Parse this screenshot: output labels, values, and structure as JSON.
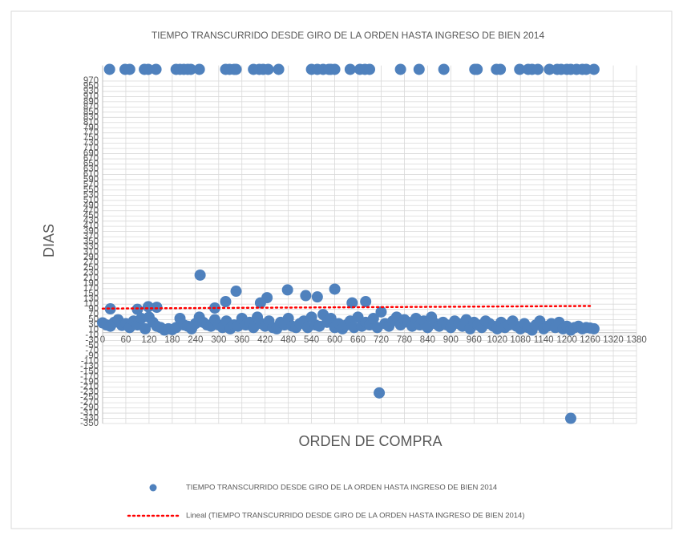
{
  "chart_data": {
    "type": "scatter",
    "title": "TIEMPO TRANSCURRIDO DESDE GIRO DE LA ORDEN HASTA INGRESO DE BIEN 2014",
    "x_label": "ORDEN DE COMPRA",
    "y_label": "DIAS",
    "xlim": [
      0,
      1380
    ],
    "ylim": [
      -350,
      1030
    ],
    "xticks": [
      0,
      60,
      120,
      180,
      240,
      300,
      360,
      420,
      480,
      540,
      600,
      660,
      720,
      780,
      840,
      900,
      960,
      1020,
      1080,
      1140,
      1200,
      1260,
      1320,
      1380
    ],
    "yticks": [
      -350,
      -330,
      -310,
      -290,
      -270,
      -250,
      -230,
      -210,
      -190,
      -170,
      -150,
      -130,
      -110,
      -90,
      -70,
      -50,
      -30,
      -10,
      10,
      30,
      50,
      70,
      90,
      110,
      130,
      150,
      170,
      190,
      210,
      230,
      250,
      270,
      290,
      310,
      330,
      350,
      370,
      390,
      410,
      430,
      450,
      470,
      490,
      510,
      530,
      550,
      570,
      590,
      610,
      630,
      650,
      670,
      690,
      710,
      730,
      750,
      770,
      790,
      810,
      830,
      850,
      870,
      890,
      910,
      930,
      950,
      970
    ],
    "grid": true,
    "legend": "bottom",
    "series": [
      {
        "name": "TIEMPO TRANSCURRIDO DESDE GIRO DE LA ORDEN HASTA INGRESO DE BIEN 2014",
        "color": "#4f81bd",
        "x": [
          0,
          10,
          20,
          30,
          40,
          50,
          60,
          70,
          80,
          90,
          100,
          110,
          120,
          130,
          140,
          150,
          160,
          170,
          180,
          190,
          200,
          210,
          220,
          230,
          240,
          250,
          260,
          270,
          280,
          290,
          300,
          310,
          320,
          330,
          340,
          350,
          360,
          370,
          380,
          390,
          400,
          410,
          420,
          430,
          440,
          450,
          460,
          470,
          480,
          490,
          500,
          510,
          520,
          530,
          540,
          550,
          560,
          570,
          580,
          590,
          600,
          610,
          620,
          630,
          640,
          650,
          660,
          670,
          680,
          690,
          700,
          710,
          720,
          730,
          740,
          750,
          760,
          770,
          780,
          790,
          800,
          810,
          820,
          830,
          840,
          850,
          860,
          870,
          880,
          890,
          900,
          910,
          920,
          930,
          940,
          950,
          960,
          970,
          980,
          990,
          1000,
          1010,
          1020,
          1030,
          1040,
          1050,
          1060,
          1070,
          1080,
          1090,
          1100,
          1110,
          1120,
          1130,
          1140,
          1150,
          1160,
          1170,
          1180,
          1190,
          1200,
          1210,
          1220,
          1230,
          1240,
          1250,
          1260,
          1270,
          18,
          58,
          70,
          108,
          118,
          138,
          190,
          200,
          210,
          220,
          228,
          250,
          318,
          328,
          340,
          345,
          390,
          405,
          415,
          428,
          455,
          540,
          555,
          570,
          585,
          590,
          600,
          640,
          665,
          678,
          690,
          770,
          818,
          882,
          962,
          968,
          1018,
          1028,
          1078,
          1100,
          1110,
          1125,
          1155,
          1175,
          1185,
          1200,
          1210,
          1225,
          1240,
          1250,
          1270,
          252,
          345,
          318,
          425,
          478,
          525,
          555,
          600,
          645,
          680,
          715,
          1210,
          408,
          118,
          140,
          20,
          90,
          290
        ],
        "values": [
          38,
          30,
          25,
          40,
          50,
          28,
          35,
          20,
          45,
          30,
          55,
          15,
          60,
          40,
          25,
          20,
          10,
          15,
          12,
          20,
          55,
          30,
          25,
          15,
          35,
          60,
          40,
          30,
          25,
          50,
          30,
          20,
          45,
          15,
          30,
          25,
          55,
          30,
          40,
          20,
          60,
          35,
          25,
          45,
          20,
          15,
          40,
          30,
          55,
          25,
          20,
          35,
          45,
          20,
          60,
          30,
          25,
          70,
          40,
          55,
          20,
          35,
          15,
          30,
          45,
          20,
          60,
          25,
          40,
          30,
          55,
          20,
          80,
          35,
          25,
          45,
          60,
          30,
          50,
          40,
          25,
          55,
          30,
          45,
          20,
          60,
          35,
          25,
          40,
          30,
          20,
          45,
          35,
          25,
          50,
          15,
          40,
          30,
          20,
          45,
          35,
          25,
          15,
          40,
          20,
          30,
          45,
          25,
          15,
          35,
          20,
          10,
          30,
          45,
          15,
          25,
          35,
          20,
          40,
          15,
          25,
          10,
          20,
          25,
          15,
          20,
          18,
          15,
          1015,
          1015,
          1015,
          1015,
          1015,
          1015,
          1015,
          1015,
          1015,
          1015,
          1015,
          1015,
          1015,
          1015,
          1015,
          1015,
          1015,
          1015,
          1015,
          1015,
          1015,
          1015,
          1015,
          1015,
          1015,
          1015,
          1015,
          1015,
          1015,
          1015,
          1015,
          1015,
          1015,
          1015,
          1015,
          1015,
          1015,
          1015,
          1015,
          1015,
          1015,
          1015,
          1015,
          1015,
          1015,
          1015,
          1015,
          1015,
          1015,
          1015,
          1015,
          222,
          160,
          120,
          135,
          165,
          143,
          138,
          168,
          115,
          120,
          -232,
          -330,
          115,
          100,
          98,
          92,
          90,
          95
        ]
      },
      {
        "name": "Lineal (TIEMPO TRANSCURRIDO DESDE GIRO DE LA ORDEN HASTA INGRESO DE BIEN 2014)",
        "color": "#ff0000",
        "type": "line",
        "x": [
          0,
          1265
        ],
        "values": [
          93,
          103
        ]
      }
    ]
  }
}
